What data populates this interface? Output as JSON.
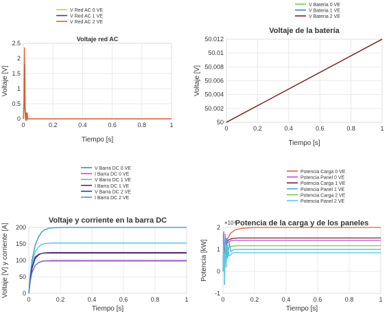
{
  "chart_data": [
    {
      "type": "line",
      "title": "Voltaje red AC",
      "xlabel": "Tiempo [s]",
      "ylabel": "Voltaje [V]",
      "xlim": [
        0,
        1
      ],
      "ylim": [
        0,
        2.5
      ],
      "xticks": [
        "0",
        "0.2",
        "0.4",
        "0.6",
        "0.8",
        "1"
      ],
      "yticks": [
        "0",
        "0.5",
        "1",
        "1.5",
        "2",
        "2.5"
      ],
      "grid": true,
      "legend_position": "top-center",
      "series": [
        {
          "name": "V Red AC 0 VE",
          "color": "#d9c25a",
          "x": [
            0,
            0.005,
            0.008,
            0.01,
            0.012,
            0.015,
            0.018,
            0.02,
            0.03,
            0.04,
            1
          ],
          "y": [
            0,
            0.3,
            1.2,
            1.6,
            0.2,
            0.1,
            0,
            0,
            0,
            0,
            0
          ]
        },
        {
          "name": "V Red AC 1 VE",
          "color": "#3b3fa0",
          "x": [
            0,
            0.005,
            0.008,
            0.01,
            0.012,
            0.015,
            0.02,
            0.03,
            1
          ],
          "y": [
            0,
            0.5,
            1.5,
            1.8,
            0.4,
            0.1,
            0,
            0,
            0
          ]
        },
        {
          "name": "V Red AC 2 VE",
          "color": "#e2622e",
          "x": [
            0,
            0.004,
            0.006,
            0.008,
            0.01,
            0.013,
            0.016,
            0.02,
            0.024,
            0.027,
            0.03,
            0.035,
            0.04,
            1
          ],
          "y": [
            0,
            0.6,
            1.6,
            2.35,
            0.5,
            0.05,
            -0.05,
            0.2,
            -0.05,
            0.2,
            0.0,
            0,
            0,
            0
          ]
        }
      ]
    },
    {
      "type": "line",
      "title": "Voltaje de la batería",
      "xlabel": "Tiempo [s]",
      "ylabel": "Voltaje [V]",
      "xlim": [
        0,
        1
      ],
      "ylim": [
        50,
        50.012
      ],
      "xticks": [
        "0",
        "0.2",
        "0.4",
        "0.6",
        "0.8",
        "1"
      ],
      "yticks": [
        "50",
        "50.002",
        "50.004",
        "50.006",
        "50.008",
        "50.01",
        "50.012"
      ],
      "grid": true,
      "legend_position": "top-center",
      "series": [
        {
          "name": "V Bateria 0 VE",
          "color": "#7ac943",
          "x": [
            0,
            1
          ],
          "y": [
            50,
            50.012
          ]
        },
        {
          "name": "V Bateria 1 VE",
          "color": "#2e86c1",
          "x": [
            0,
            1
          ],
          "y": [
            50,
            50.012
          ]
        },
        {
          "name": "V Bateria 2 VE",
          "color": "#8b1a1a",
          "x": [
            0,
            1
          ],
          "y": [
            50,
            50.012
          ]
        }
      ]
    },
    {
      "type": "line",
      "title": "Voltaje y corriente en la barra DC",
      "xlabel": "Tiempo [s]",
      "ylabel": "Voltaje [V] y corriente [A]",
      "xlim": [
        0,
        1
      ],
      "ylim": [
        0,
        200
      ],
      "xticks": [
        "0",
        "0.2",
        "0.4",
        "0.6",
        "0.8",
        "1"
      ],
      "yticks": [
        "0",
        "50",
        "100",
        "150",
        "200"
      ],
      "grid": true,
      "legend_position": "top-center",
      "series": [
        {
          "name": "V Barra DC 0 VE",
          "color": "#2e8fd0",
          "x": [
            0,
            0.01,
            0.02,
            0.04,
            0.06,
            0.08,
            0.1,
            0.13,
            0.2,
            1
          ],
          "y": [
            0,
            60,
            100,
            145,
            170,
            185,
            193,
            198,
            200,
            200
          ]
        },
        {
          "name": "I Barra DC 0 VE",
          "color": "#e040b0",
          "x": [
            0,
            0.01,
            0.02,
            0.04,
            0.06,
            0.08,
            0.1,
            0.15,
            1
          ],
          "y": [
            0,
            40,
            65,
            85,
            93,
            97,
            99,
            100,
            100
          ]
        },
        {
          "name": "V Barra DC 1 VE",
          "color": "#4cc3d9",
          "x": [
            0,
            0.01,
            0.02,
            0.04,
            0.06,
            0.08,
            0.1,
            0.15,
            1
          ],
          "y": [
            0,
            55,
            90,
            125,
            140,
            148,
            151,
            153,
            153
          ]
        },
        {
          "name": "I Barra DC 1 VE",
          "color": "#6a1f6e",
          "x": [
            0,
            0.01,
            0.02,
            0.04,
            0.06,
            0.08,
            0.1,
            0.15,
            1
          ],
          "y": [
            0,
            45,
            75,
            105,
            116,
            121,
            123,
            124,
            124
          ]
        },
        {
          "name": "V Barra DC 2 VE",
          "color": "#2b3a8c",
          "x": [
            0,
            0.01,
            0.02,
            0.04,
            0.06,
            0.08,
            0.1,
            0.15,
            1
          ],
          "y": [
            0,
            50,
            80,
            110,
            118,
            121,
            122,
            122,
            122
          ]
        },
        {
          "name": "I Barra DC 2 VE",
          "color": "#5b8fd6",
          "x": [
            0,
            0.01,
            0.02,
            0.04,
            0.06,
            0.08,
            0.1,
            0.15,
            1
          ],
          "y": [
            0,
            38,
            62,
            84,
            92,
            96,
            98,
            98,
            98
          ]
        }
      ]
    },
    {
      "type": "line",
      "title": "Potencia de la carga y de los paneles",
      "xlabel": "Tiempo [s]",
      "ylabel": "Potencia [kW]",
      "y_multiplier": "×10⁴",
      "xlim": [
        0,
        1
      ],
      "ylim": [
        -1,
        2
      ],
      "xticks": [
        "0",
        "0.2",
        "0.4",
        "0.6",
        "0.8",
        "1"
      ],
      "yticks": [
        "-1",
        "0",
        "1",
        "2"
      ],
      "grid": true,
      "legend_position": "top-center",
      "series": [
        {
          "name": "Potencia Carga 0 VE",
          "color": "#e2622e",
          "x": [
            0,
            0.01,
            0.03,
            0.05,
            0.08,
            0.12,
            0.2,
            1
          ],
          "y": [
            0,
            1.0,
            1.5,
            1.75,
            1.9,
            1.96,
            2.0,
            2.0
          ]
        },
        {
          "name": "Potencia Panel 0 VE",
          "color": "#c14ad0",
          "x": [
            0,
            0.005,
            0.01,
            0.02,
            0.03,
            0.05,
            0.08,
            1
          ],
          "y": [
            0,
            1.8,
            0.8,
            1.5,
            1.3,
            1.4,
            1.42,
            1.42
          ]
        },
        {
          "name": "Potencia Carga 1 VE",
          "color": "#7a1f3a",
          "x": [
            0,
            0.01,
            0.02,
            0.04,
            0.06,
            0.1,
            1
          ],
          "y": [
            0,
            1.0,
            1.3,
            1.45,
            1.5,
            1.52,
            1.52
          ]
        },
        {
          "name": "Potencia Panel 1 VE",
          "color": "#3fb0e0",
          "x": [
            0,
            0.005,
            0.01,
            0.015,
            0.02,
            0.025,
            0.03,
            0.04,
            0.05,
            0.07,
            1
          ],
          "y": [
            0,
            1.5,
            -0.6,
            1.7,
            0.2,
            1.5,
            0.6,
            1.3,
            0.9,
            1.0,
            1.0
          ]
        },
        {
          "name": "Potencia Carga 2 VE",
          "color": "#7ac943",
          "x": [
            0,
            0.01,
            0.02,
            0.04,
            0.06,
            0.1,
            1
          ],
          "y": [
            0,
            0.8,
            1.0,
            1.12,
            1.15,
            1.17,
            1.17
          ]
        },
        {
          "name": "Potencia Panel 2 VE",
          "color": "#5ec8e8",
          "x": [
            0,
            0.005,
            0.01,
            0.015,
            0.02,
            0.03,
            0.04,
            0.06,
            1
          ],
          "y": [
            0,
            1.2,
            -0.4,
            1.3,
            0.3,
            1.1,
            0.7,
            0.85,
            0.85
          ]
        }
      ]
    }
  ]
}
